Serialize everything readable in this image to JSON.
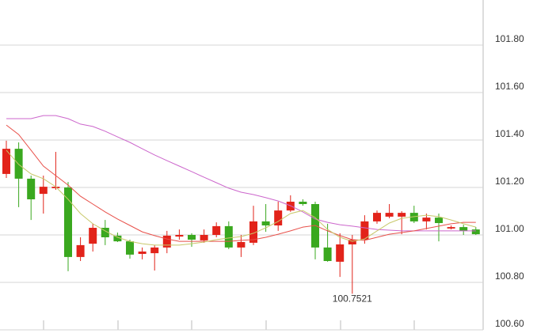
{
  "chart_data": {
    "type": "candlestick",
    "candles": {
      "open": [
        101.257,
        101.363,
        101.237,
        101.173,
        101.197,
        101.2,
        100.907,
        100.963,
        101.03,
        100.997,
        100.973,
        100.92,
        100.923,
        100.947,
        100.993,
        101.0,
        100.977,
        101.0,
        101.037,
        100.947,
        100.967,
        101.057,
        101.04,
        101.103,
        101.14,
        101.13,
        100.947,
        100.887,
        100.96,
        100.98,
        101.057,
        101.077,
        101.077,
        101.093,
        101.057,
        101.073,
        101.027,
        101.033,
        101.023
      ],
      "high": [
        101.397,
        101.39,
        101.25,
        101.25,
        101.35,
        101.223,
        100.99,
        101.047,
        101.063,
        101.01,
        100.98,
        100.947,
        100.957,
        101.017,
        101.023,
        101.007,
        101.023,
        101.053,
        101.057,
        101.0,
        101.123,
        101.13,
        101.14,
        101.167,
        101.15,
        101.14,
        101.047,
        101.007,
        101.0,
        101.083,
        101.103,
        101.13,
        101.1,
        101.123,
        101.09,
        101.09,
        101.04,
        101.043,
        101.033
      ],
      "low": [
        101.24,
        101.117,
        101.063,
        101.09,
        101.19,
        100.847,
        100.89,
        100.93,
        100.957,
        100.97,
        100.9,
        100.897,
        100.85,
        100.923,
        100.98,
        100.95,
        100.967,
        100.99,
        100.94,
        100.907,
        100.957,
        101.013,
        101.017,
        101.097,
        101.123,
        100.897,
        100.887,
        100.823,
        100.7521,
        100.963,
        101.047,
        101.07,
        101.003,
        101.05,
        101.023,
        100.973,
        101.023,
        101.0,
        101.0
      ],
      "close": [
        101.363,
        101.237,
        101.15,
        101.203,
        101.203,
        100.907,
        100.957,
        101.03,
        100.99,
        100.973,
        100.917,
        100.93,
        100.947,
        100.997,
        101.0,
        100.98,
        101.0,
        101.037,
        100.947,
        100.97,
        101.057,
        101.04,
        101.103,
        101.14,
        101.13,
        100.947,
        100.89,
        100.96,
        100.98,
        101.057,
        101.093,
        101.093,
        101.093,
        101.057,
        101.073,
        101.05,
        101.033,
        101.017,
        101.003
      ]
    },
    "up_color": "#e2231a",
    "down_color": "#3aa81f",
    "series": [
      {
        "color": "#cc66cc",
        "values": [
          101.49,
          101.49,
          101.49,
          101.503,
          101.503,
          101.49,
          101.467,
          101.457,
          101.437,
          101.413,
          101.39,
          101.363,
          101.337,
          101.313,
          101.29,
          101.267,
          101.243,
          101.22,
          101.197,
          101.18,
          101.17,
          101.157,
          101.143,
          101.123,
          101.097,
          101.067,
          101.053,
          101.043,
          101.037,
          101.03,
          101.023,
          101.02,
          101.017,
          101.017,
          101.017,
          101.017,
          101.017,
          101.017,
          101.017
        ]
      },
      {
        "color": "#e8504a",
        "values": [
          101.463,
          101.423,
          101.357,
          101.29,
          101.25,
          101.21,
          101.163,
          101.13,
          101.097,
          101.067,
          101.04,
          101.013,
          100.997,
          100.983,
          100.973,
          100.973,
          100.973,
          100.973,
          100.973,
          100.977,
          100.98,
          100.99,
          101.003,
          101.017,
          101.033,
          101.04,
          101.017,
          100.997,
          100.98,
          100.977,
          100.99,
          101.003,
          101.01,
          101.017,
          101.027,
          101.037,
          101.047,
          101.053,
          101.053
        ]
      },
      {
        "color": "#c8c86a",
        "values": [
          101.357,
          101.297,
          101.257,
          101.237,
          101.203,
          101.15,
          101.09,
          101.047,
          101.017,
          100.99,
          100.973,
          100.963,
          100.957,
          100.957,
          100.957,
          100.963,
          100.97,
          100.98,
          100.987,
          100.993,
          101.007,
          101.03,
          101.057,
          101.09,
          101.103,
          101.073,
          101.023,
          100.99,
          100.973,
          100.983,
          101.017,
          101.05,
          101.07,
          101.077,
          101.083,
          101.077,
          101.063,
          101.047,
          101.033
        ]
      }
    ],
    "low_label": "100.7521",
    "ylim": [
      100.6,
      101.99
    ],
    "yticks": [
      {
        "value": 100.6,
        "label": "100.60"
      },
      {
        "value": 100.8,
        "label": "100.80"
      },
      {
        "value": 101.0,
        "label": "101.00"
      },
      {
        "value": 101.2,
        "label": "101.20"
      },
      {
        "value": 101.4,
        "label": "101.40"
      },
      {
        "value": 101.6,
        "label": "101.60"
      },
      {
        "value": 101.8,
        "label": "101.80"
      }
    ],
    "grid": true
  }
}
